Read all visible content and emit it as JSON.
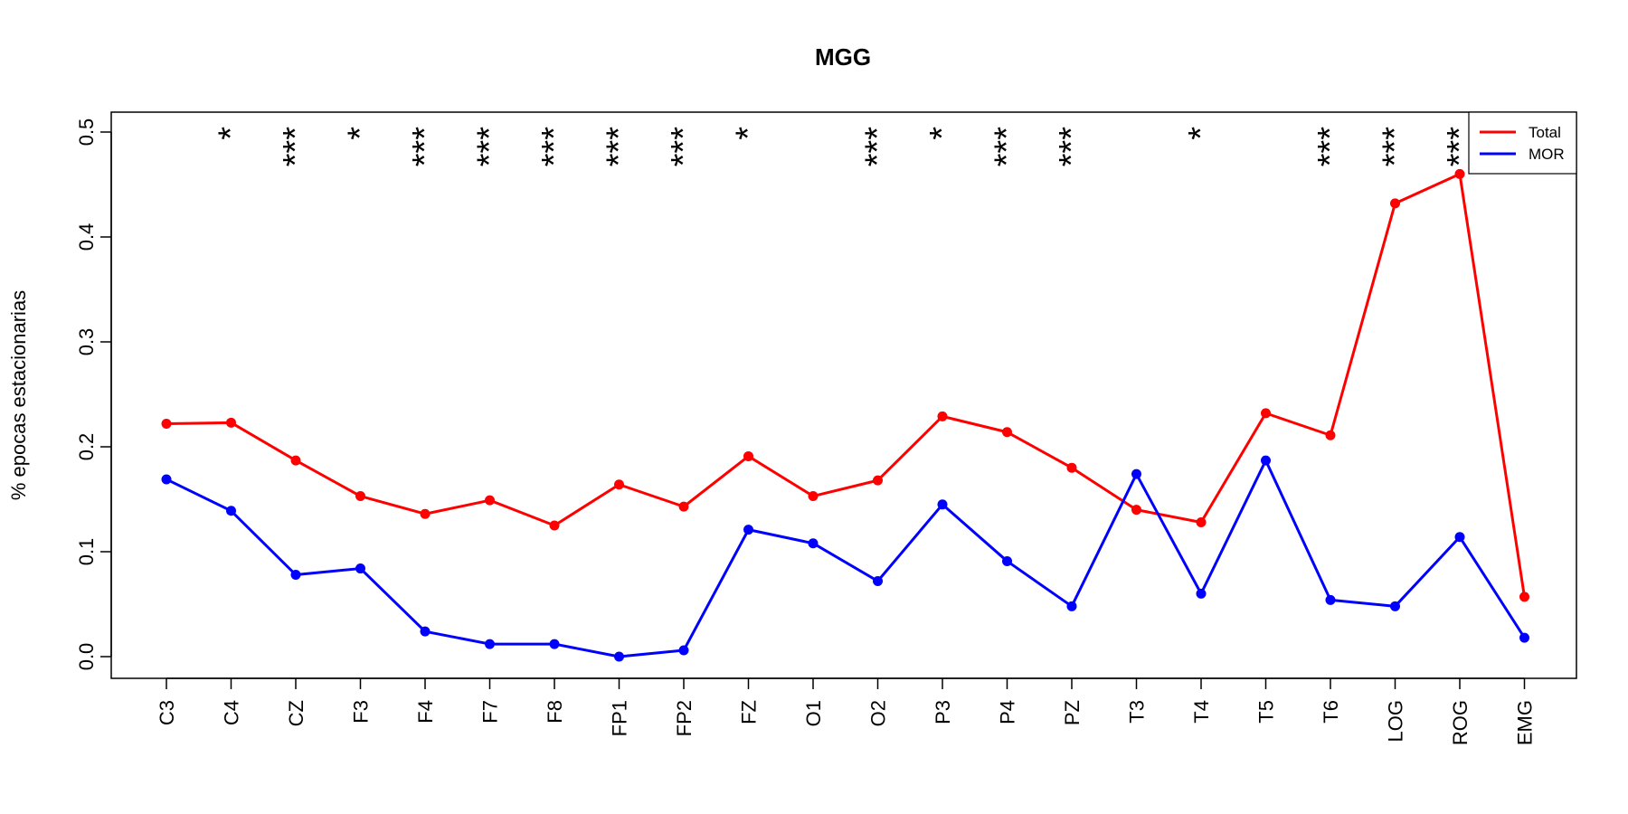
{
  "chart_data": {
    "type": "line",
    "title": "MGG",
    "xlabel": "",
    "ylabel": "% epocas estacionarias",
    "ylim": [
      0,
      0.5
    ],
    "yticks": [
      "0.0",
      "0.1",
      "0.2",
      "0.3",
      "0.4",
      "0.5"
    ],
    "categories": [
      "C3",
      "C4",
      "CZ",
      "F3",
      "F4",
      "F7",
      "F8",
      "FP1",
      "FP2",
      "FZ",
      "O1",
      "O2",
      "P3",
      "P4",
      "PZ",
      "T3",
      "T4",
      "T5",
      "T6",
      "LOG",
      "ROG",
      "EMG"
    ],
    "series": [
      {
        "name": "Total",
        "color": "#ff0000",
        "values": [
          0.222,
          0.223,
          0.187,
          0.153,
          0.136,
          0.149,
          0.125,
          0.164,
          0.143,
          0.191,
          0.153,
          0.168,
          0.229,
          0.214,
          0.18,
          0.14,
          0.128,
          0.232,
          0.211,
          0.432,
          0.46,
          0.057
        ]
      },
      {
        "name": "MOR",
        "color": "#0000ff",
        "values": [
          0.169,
          0.139,
          0.078,
          0.084,
          0.024,
          0.012,
          0.012,
          0.0,
          0.006,
          0.121,
          0.108,
          0.072,
          0.145,
          0.091,
          0.048,
          0.174,
          0.06,
          0.187,
          0.054,
          0.048,
          0.114,
          0.018
        ]
      }
    ],
    "significance": [
      "",
      "*",
      "***",
      "*",
      "***",
      "***",
      "***",
      "***",
      "***",
      "*",
      "",
      "***",
      "*",
      "***",
      "***",
      "",
      "*",
      "",
      "***",
      "***",
      "***",
      ""
    ],
    "legend": {
      "position": "top-right",
      "entries": [
        "Total",
        "MOR"
      ]
    },
    "grid": false
  }
}
